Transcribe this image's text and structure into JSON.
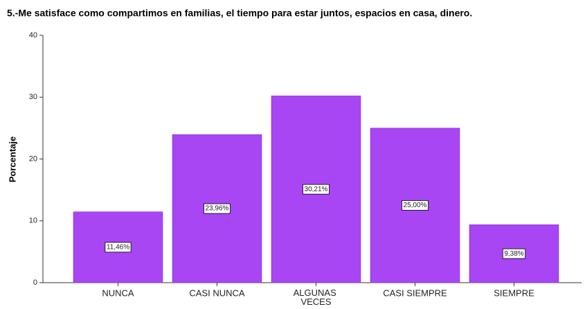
{
  "chart_data": {
    "type": "bar",
    "title": "5.-Me satisface como compartimos en familias, el tiempo para estar juntos, espacios en casa, dinero.",
    "ylabel": "Porcentaje",
    "categories": [
      "NUNCA",
      "CASI NUNCA",
      "ALGUNAS VECES",
      "CASI SIEMPRE",
      "SIEMPRE"
    ],
    "values": [
      11.46,
      23.96,
      30.21,
      25.0,
      9.38
    ],
    "value_labels": [
      "11,46%",
      "23,96%",
      "30,21%",
      "25,00%",
      "9,38%"
    ],
    "color": "#a746f2",
    "ylim": [
      0,
      40
    ],
    "yticks": [
      0,
      10,
      20,
      30,
      40
    ],
    "grid": false
  }
}
